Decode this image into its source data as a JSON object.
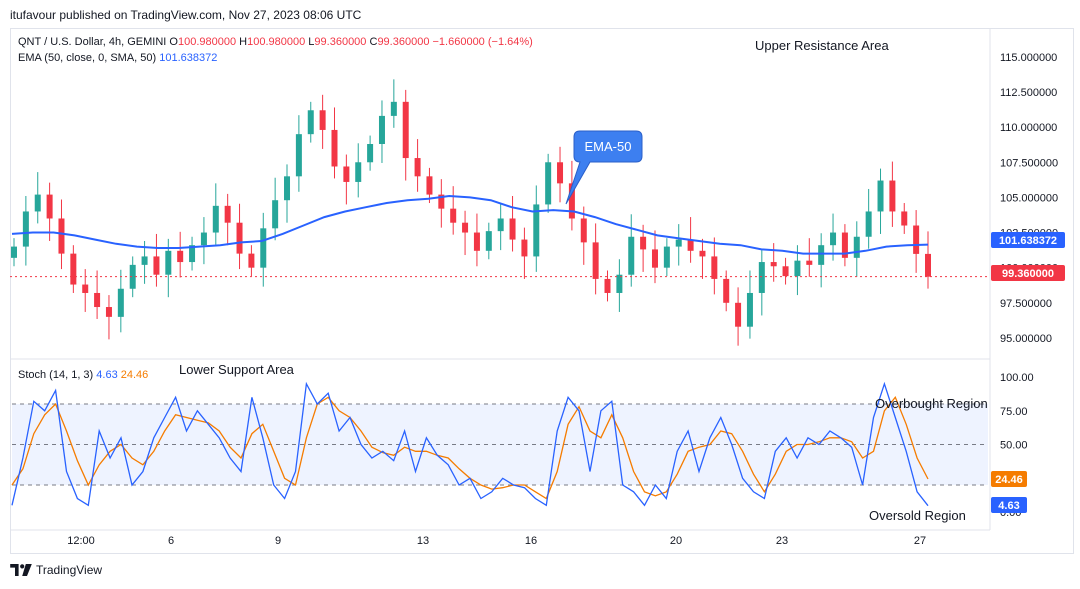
{
  "header": {
    "publisher": "itufavour published on TradingView.com, Nov 27, 2023 08:06 UTC"
  },
  "legend_main": {
    "symbol": "QNT / U.S. Dollar, 4h, GEMINI",
    "o_label": "O",
    "o": "100.980000",
    "h_label": "H",
    "h": "100.980000",
    "l_label": "L",
    "l": "99.360000",
    "c_label": "C",
    "c": "99.360000",
    "change": "−1.660000 (−1.64%)",
    "ema_label": "EMA (50, close, 0, SMA, 50)",
    "ema_value": "101.638372"
  },
  "legend_stoch": {
    "label": "Stoch (14, 1, 3)",
    "k": "4.63",
    "d": "24.46"
  },
  "annotations": {
    "upper_resistance": "Upper Resistance Area",
    "lower_support": "Lower Support Area",
    "overbought": "Overbought Region",
    "oversold": "Oversold Region",
    "ema_callout": "EMA-50"
  },
  "price_badges": {
    "ema": "101.638372",
    "close": "99.360000"
  },
  "stoch_badges": {
    "d": "24.46",
    "k": "4.63"
  },
  "footer": {
    "brand": "TradingView"
  },
  "colors": {
    "up": "#26a69a",
    "down": "#f23645",
    "ema": "#2962ff",
    "stoch_k": "#2962ff",
    "stoch_d": "#f57c00",
    "band": "#2962ff"
  },
  "chart_data": [
    {
      "type": "candlestick",
      "title": "QNT / U.S. Dollar, 4h, GEMINI",
      "y_ticks": [
        "115.000000",
        "112.500000",
        "110.000000",
        "107.500000",
        "105.000000",
        "102.500000",
        "100.000000",
        "97.500000",
        "95.000000"
      ],
      "ylim": [
        94.0,
        116.2
      ],
      "x_ticks": [
        "12:00",
        "6",
        "9",
        "13",
        "16",
        "20",
        "23",
        "27"
      ],
      "close_series": [
        101.5,
        104.0,
        105.2,
        103.5,
        101.0,
        98.8,
        98.2,
        97.2,
        96.5,
        98.5,
        100.2,
        100.8,
        99.5,
        101.2,
        100.4,
        101.6,
        102.5,
        104.4,
        103.2,
        101.0,
        100.0,
        102.8,
        104.8,
        106.5,
        109.5,
        111.2,
        109.8,
        107.2,
        106.1,
        107.5,
        108.8,
        110.8,
        111.8,
        107.8,
        106.5,
        105.2,
        104.2,
        103.2,
        102.5,
        101.2,
        102.6,
        103.5,
        102.0,
        100.8,
        104.5,
        107.5,
        106.0,
        103.5,
        101.8,
        99.2,
        98.2,
        99.5,
        102.2,
        101.3,
        100.0,
        101.5,
        102.0,
        101.2,
        100.8,
        99.2,
        97.5,
        95.8,
        98.2,
        100.4,
        100.1,
        99.4,
        100.5,
        100.2,
        101.6,
        102.5,
        100.7,
        102.2,
        104.0,
        106.2,
        104.0,
        103.0,
        100.98,
        99.36
      ],
      "ema_series": [
        102.4,
        102.5,
        102.5,
        102.3,
        102.0,
        101.7,
        101.5,
        101.4,
        101.4,
        101.5,
        101.6,
        101.8,
        101.9,
        102.4,
        103.0,
        103.6,
        104.0,
        104.3,
        104.6,
        104.8,
        104.9,
        105.1,
        105.0,
        104.8,
        104.3,
        104.0,
        104.1,
        104.0,
        103.6,
        103.1,
        102.7,
        102.3,
        102.1,
        101.9,
        101.7,
        101.6,
        101.3,
        101.2,
        101.0,
        101.0,
        101.0,
        101.2,
        101.5,
        101.6,
        101.64
      ],
      "close": "99.360000",
      "ema_last": "101.638372"
    },
    {
      "type": "line",
      "title": "Stoch (14, 1, 3)",
      "y_ticks": [
        "100.00",
        "75.00",
        "50.00",
        "25.00",
        "0.00"
      ],
      "ylim": [
        0,
        100
      ],
      "levels": [
        80,
        50,
        20
      ],
      "series": [
        {
          "name": "K",
          "values": [
            5,
            40,
            82,
            75,
            90,
            30,
            10,
            5,
            60,
            40,
            55,
            20,
            30,
            55,
            70,
            85,
            60,
            75,
            65,
            55,
            40,
            30,
            85,
            55,
            20,
            10,
            30,
            95,
            80,
            88,
            60,
            70,
            50,
            40,
            45,
            38,
            60,
            30,
            55,
            42,
            35,
            20,
            25,
            10,
            15,
            25,
            20,
            18,
            10,
            5,
            60,
            85,
            75,
            30,
            75,
            82,
            20,
            15,
            5,
            20,
            10,
            45,
            60,
            30,
            55,
            70,
            50,
            25,
            15,
            10,
            45,
            55,
            40,
            55,
            50,
            60,
            55,
            48,
            20,
            70,
            95,
            70,
            45,
            15,
            4.63
          ]
        },
        {
          "name": "D",
          "values": [
            20,
            32,
            58,
            72,
            80,
            60,
            38,
            20,
            35,
            45,
            50,
            40,
            35,
            45,
            60,
            72,
            70,
            68,
            66,
            60,
            48,
            40,
            58,
            65,
            45,
            25,
            20,
            55,
            80,
            85,
            75,
            70,
            60,
            48,
            44,
            42,
            48,
            45,
            45,
            42,
            40,
            32,
            25,
            20,
            17,
            18,
            20,
            20,
            15,
            10,
            30,
            65,
            78,
            60,
            55,
            72,
            55,
            30,
            15,
            12,
            15,
            28,
            45,
            48,
            50,
            60,
            58,
            45,
            28,
            15,
            28,
            45,
            50,
            50,
            52,
            55,
            55,
            52,
            40,
            45,
            75,
            85,
            65,
            40,
            24.46
          ]
        }
      ],
      "k_last": "4.63",
      "d_last": "24.46"
    }
  ]
}
